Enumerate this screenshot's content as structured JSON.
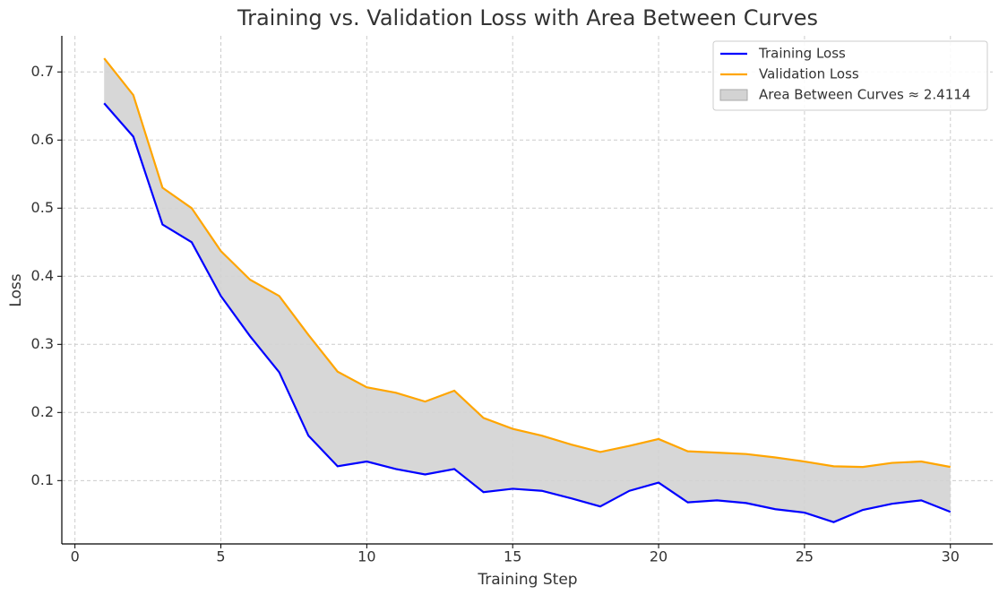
{
  "chart_data": {
    "type": "line",
    "title": "Training vs. Validation Loss with Area Between Curves",
    "x_label": "Training Step",
    "y_label": "Loss",
    "x": [
      1,
      2,
      3,
      4,
      5,
      6,
      7,
      8,
      9,
      10,
      11,
      12,
      13,
      14,
      15,
      16,
      17,
      18,
      19,
      20,
      21,
      22,
      23,
      24,
      25,
      26,
      27,
      28,
      29,
      30
    ],
    "series": [
      {
        "name": "Training Loss",
        "color": "#0000ff",
        "values": [
          0.654,
          0.605,
          0.476,
          0.45,
          0.371,
          0.312,
          0.259,
          0.166,
          0.121,
          0.128,
          0.117,
          0.109,
          0.117,
          0.083,
          0.088,
          0.085,
          0.074,
          0.062,
          0.085,
          0.097,
          0.068,
          0.071,
          0.067,
          0.058,
          0.053,
          0.039,
          0.057,
          0.066,
          0.071,
          0.054
        ]
      },
      {
        "name": "Validation Loss",
        "color": "#ffa500",
        "values": [
          0.72,
          0.666,
          0.53,
          0.5,
          0.437,
          0.395,
          0.371,
          0.314,
          0.26,
          0.237,
          0.229,
          0.216,
          0.232,
          0.192,
          0.176,
          0.166,
          0.153,
          0.142,
          0.151,
          0.161,
          0.143,
          0.141,
          0.139,
          0.134,
          0.128,
          0.121,
          0.12,
          0.126,
          0.128,
          0.12
        ]
      }
    ],
    "fill_between": {
      "name": "Area Between Curves ≈ 2.4114",
      "color": "#d3d3d3"
    },
    "xlim": [
      -0.45,
      31.45
    ],
    "ylim": [
      0.007,
      0.753
    ],
    "xticks": [
      0,
      5,
      10,
      15,
      20,
      25,
      30
    ],
    "yticks": [
      0.1,
      0.2,
      0.3,
      0.4,
      0.5,
      0.6,
      0.7
    ],
    "grid": true,
    "legend": "upper right"
  }
}
